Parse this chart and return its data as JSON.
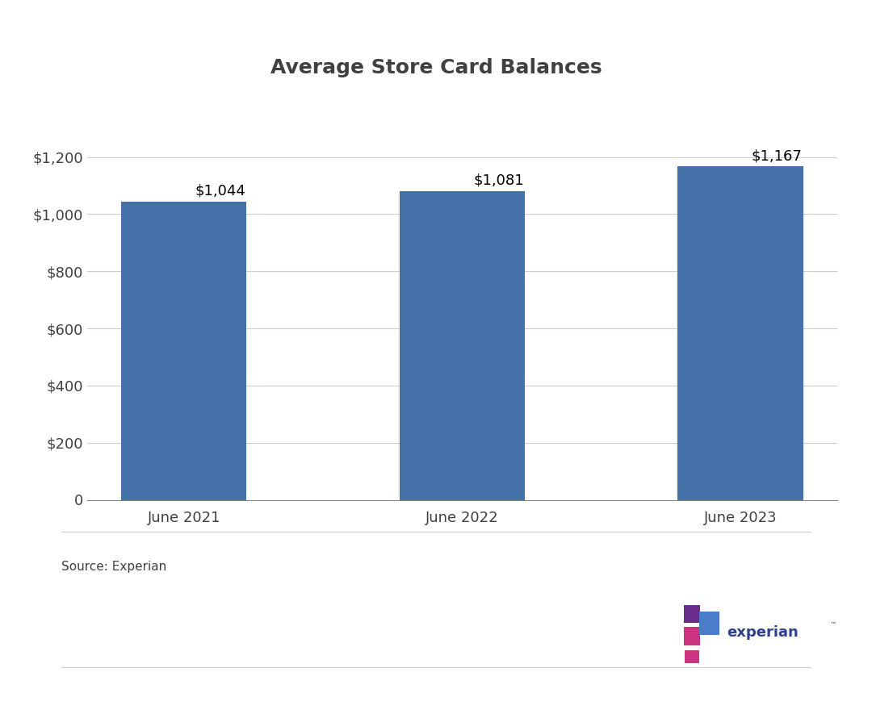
{
  "title": "Average Store Card Balances",
  "title_color": "#404040",
  "categories": [
    "June 2021",
    "June 2022",
    "June 2023"
  ],
  "values": [
    1044,
    1081,
    1167
  ],
  "bar_color": "#4472A8",
  "bar_labels": [
    "$1,044",
    "$1,081",
    "$1,167"
  ],
  "ylim": [
    0,
    1300
  ],
  "yticks": [
    0,
    200,
    400,
    600,
    800,
    1000,
    1200
  ],
  "ytick_labels": [
    "0",
    "$200",
    "$400",
    "$600",
    "$800",
    "$1,000",
    "$1,200"
  ],
  "source_text": "Source: Experian",
  "title_fontsize": 18,
  "tick_fontsize": 13,
  "label_fontsize": 13,
  "source_fontsize": 11,
  "background_color": "#ffffff",
  "grid_color": "#cccccc",
  "bar_width": 0.45,
  "experian_text_color": "#2e3f8f",
  "experian_dot_purple": "#6b2d8b",
  "experian_dot_blue": "#4a7cc7",
  "experian_dot_pink": "#cc3380",
  "separator_color": "#cccccc"
}
